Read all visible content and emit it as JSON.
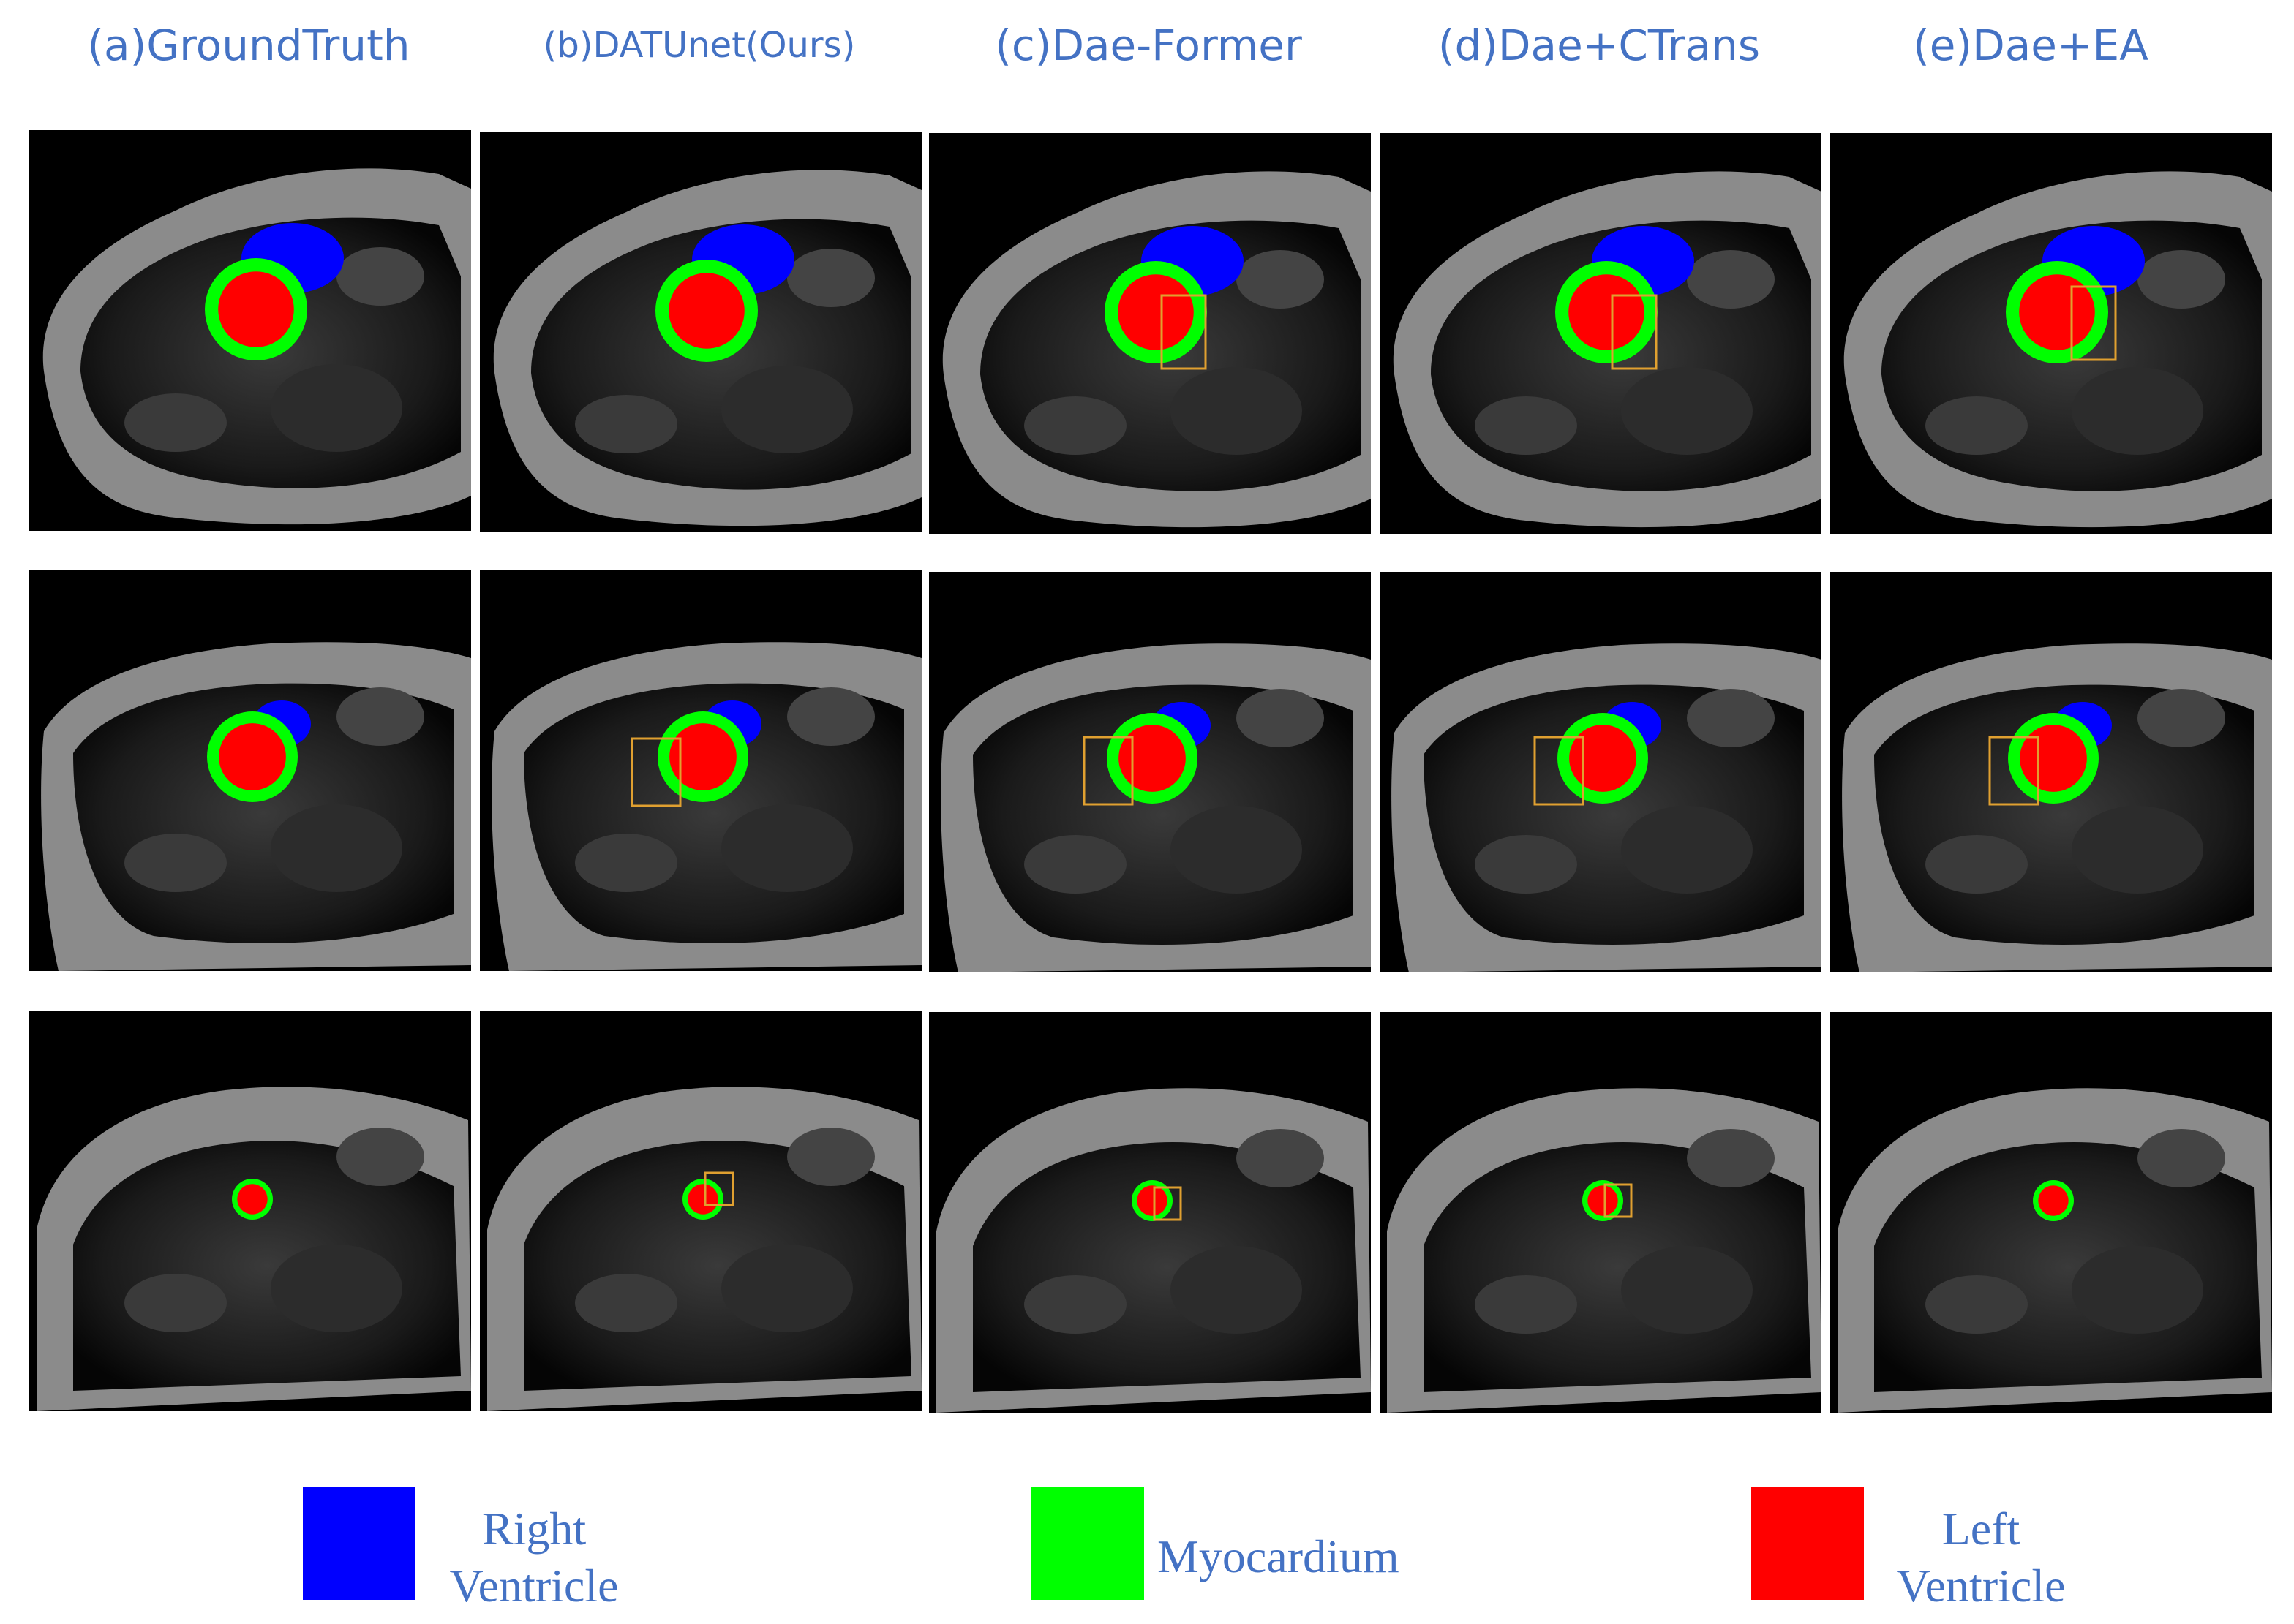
{
  "columns": [
    {
      "label": "(a)GroundTruth"
    },
    {
      "label": "(b)DATUnet(Ours)"
    },
    {
      "label": "(c)Dae-Former"
    },
    {
      "label": "(d)Dae+CTrans"
    },
    {
      "label": "(e)Dae+EA"
    }
  ],
  "legend": [
    {
      "line1": "Right",
      "line2": "Ventricle",
      "color": "#0000FF"
    },
    {
      "line1": "Myocardium",
      "line2": "",
      "color": "#00FF00"
    },
    {
      "line1": "Left",
      "line2": "Ventricle",
      "color": "#FF0000"
    }
  ],
  "colors": {
    "title": "#4472C4",
    "highlight_box": "#E0A030"
  }
}
